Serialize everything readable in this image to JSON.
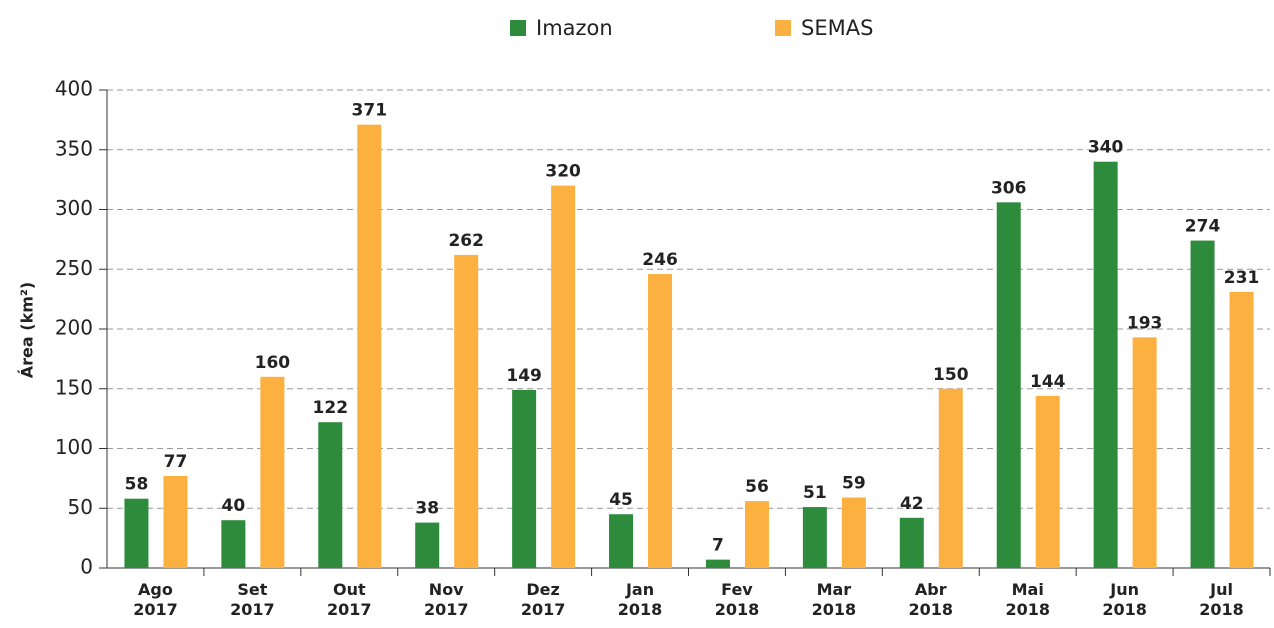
{
  "chart_data": {
    "type": "bar",
    "ylabel": "Área (km²)",
    "categories": [
      "Ago 2017",
      "Set 2017",
      "Out 2017",
      "Nov 2017",
      "Dez 2017",
      "Jan 2018",
      "Fev 2018",
      "Mar 2018",
      "Abr 2018",
      "Mai 2018",
      "Jun 2018",
      "Jul 2018"
    ],
    "series": [
      {
        "name": "Imazon",
        "color": "#2e8b3c",
        "values": [
          58,
          40,
          122,
          38,
          149,
          45,
          7,
          51,
          42,
          306,
          340,
          274
        ]
      },
      {
        "name": "SEMAS",
        "color": "#fbb040",
        "values": [
          77,
          160,
          371,
          262,
          320,
          246,
          56,
          59,
          150,
          144,
          193,
          231
        ]
      }
    ],
    "ylim": [
      0,
      400
    ],
    "yticks": [
      0,
      50,
      100,
      150,
      200,
      250,
      300,
      350,
      400
    ],
    "grid": true,
    "legend": "top"
  }
}
